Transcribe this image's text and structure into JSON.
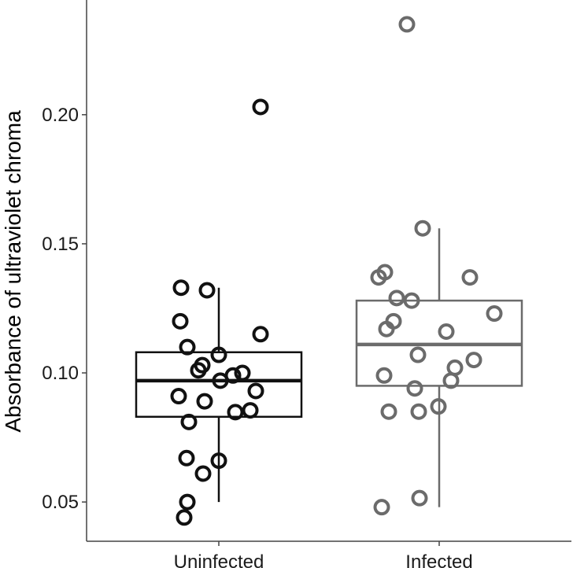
{
  "chart_data": {
    "type": "boxplot",
    "title": "",
    "xlabel": "",
    "ylabel": "Absorbance of ultraviolet chroma",
    "ylim": [
      0.04,
      0.243
    ],
    "yticks": [
      "0.05",
      "0.10",
      "0.15",
      "0.20"
    ],
    "categories": [
      "Uninfected",
      "Infected"
    ],
    "series": [
      {
        "name": "Uninfected",
        "color": "#111111",
        "box": {
          "whisker_low": 0.05,
          "q1": 0.083,
          "median": 0.097,
          "q3": 0.108,
          "whisker_high": 0.133
        },
        "points": [
          {
            "jitter": -0.48,
            "y": 0.133
          },
          {
            "jitter": -0.15,
            "y": 0.132
          },
          {
            "jitter": -0.49,
            "y": 0.12
          },
          {
            "jitter": 0.53,
            "y": 0.115
          },
          {
            "jitter": -0.4,
            "y": 0.11
          },
          {
            "jitter": 0.0,
            "y": 0.107
          },
          {
            "jitter": -0.21,
            "y": 0.103
          },
          {
            "jitter": -0.26,
            "y": 0.101
          },
          {
            "jitter": 0.3,
            "y": 0.1
          },
          {
            "jitter": 0.18,
            "y": 0.099
          },
          {
            "jitter": 0.02,
            "y": 0.097
          },
          {
            "jitter": 0.47,
            "y": 0.093
          },
          {
            "jitter": -0.51,
            "y": 0.091
          },
          {
            "jitter": -0.18,
            "y": 0.089
          },
          {
            "jitter": 0.4,
            "y": 0.0855
          },
          {
            "jitter": 0.21,
            "y": 0.0848
          },
          {
            "jitter": -0.38,
            "y": 0.081
          },
          {
            "jitter": 0.0,
            "y": 0.066
          },
          {
            "jitter": -0.41,
            "y": 0.067
          },
          {
            "jitter": -0.2,
            "y": 0.061
          },
          {
            "jitter": -0.4,
            "y": 0.05
          },
          {
            "jitter": -0.44,
            "y": 0.044
          },
          {
            "jitter": 0.53,
            "y": 0.203
          }
        ]
      },
      {
        "name": "Infected",
        "color": "#6b6b6b",
        "box": {
          "whisker_low": 0.048,
          "q1": 0.095,
          "median": 0.111,
          "q3": 0.128,
          "whisker_high": 0.156
        },
        "points": [
          {
            "jitter": -0.41,
            "y": 0.235
          },
          {
            "jitter": -0.21,
            "y": 0.156
          },
          {
            "jitter": -0.69,
            "y": 0.139
          },
          {
            "jitter": -0.77,
            "y": 0.137
          },
          {
            "jitter": 0.39,
            "y": 0.137
          },
          {
            "jitter": -0.54,
            "y": 0.129
          },
          {
            "jitter": -0.35,
            "y": 0.128
          },
          {
            "jitter": 0.7,
            "y": 0.123
          },
          {
            "jitter": -0.58,
            "y": 0.12
          },
          {
            "jitter": -0.67,
            "y": 0.117
          },
          {
            "jitter": 0.09,
            "y": 0.116
          },
          {
            "jitter": -0.27,
            "y": 0.107
          },
          {
            "jitter": 0.44,
            "y": 0.105
          },
          {
            "jitter": 0.2,
            "y": 0.102
          },
          {
            "jitter": 0.15,
            "y": 0.097
          },
          {
            "jitter": -0.7,
            "y": 0.099
          },
          {
            "jitter": -0.31,
            "y": 0.094
          },
          {
            "jitter": -0.01,
            "y": 0.087
          },
          {
            "jitter": -0.26,
            "y": 0.085
          },
          {
            "jitter": -0.64,
            "y": 0.085
          },
          {
            "jitter": -0.25,
            "y": 0.0515
          },
          {
            "jitter": -0.73,
            "y": 0.048
          }
        ]
      }
    ]
  }
}
